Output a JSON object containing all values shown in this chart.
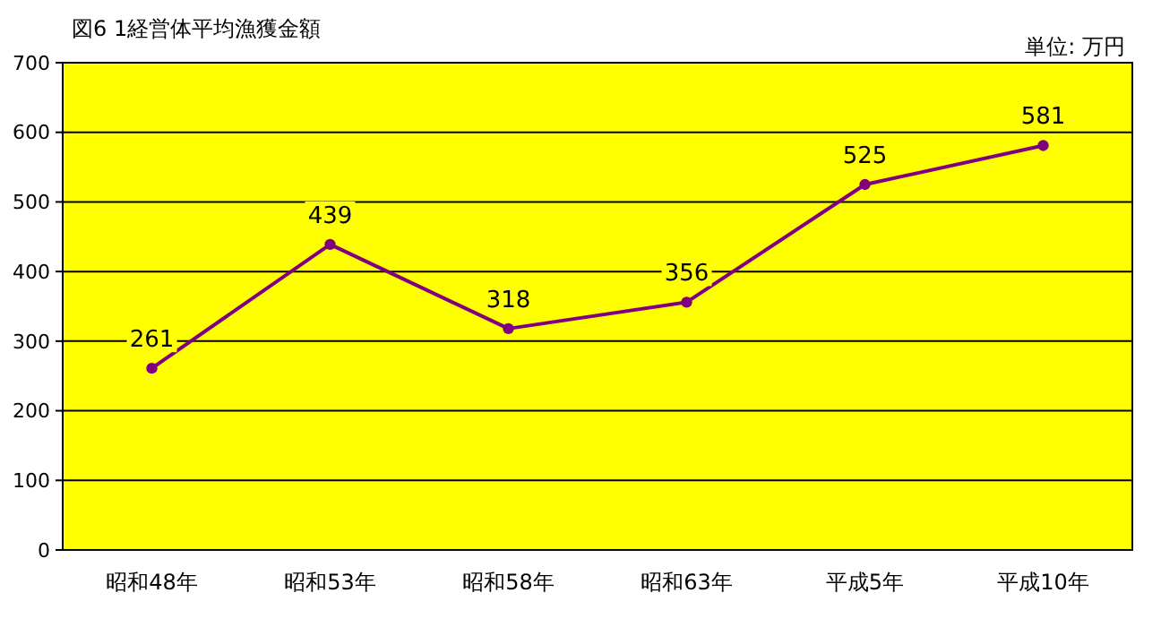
{
  "chart_data": {
    "type": "line",
    "title": "図6  1経営体平均漁獲金額",
    "annotations": [
      "単位: 万円"
    ],
    "categories": [
      "昭和48年",
      "昭和53年",
      "昭和58年",
      "昭和63年",
      "平成5年",
      "平成10年"
    ],
    "series": [
      {
        "color": "#800080",
        "values": [
          261,
          439,
          318,
          356,
          525,
          581
        ]
      }
    ],
    "ylim": [
      0,
      700
    ],
    "yticks": [
      0,
      100,
      200,
      300,
      400,
      500,
      600,
      700
    ],
    "grid": "y",
    "data_labels": true,
    "marker": "circle",
    "line_style": "solid"
  }
}
